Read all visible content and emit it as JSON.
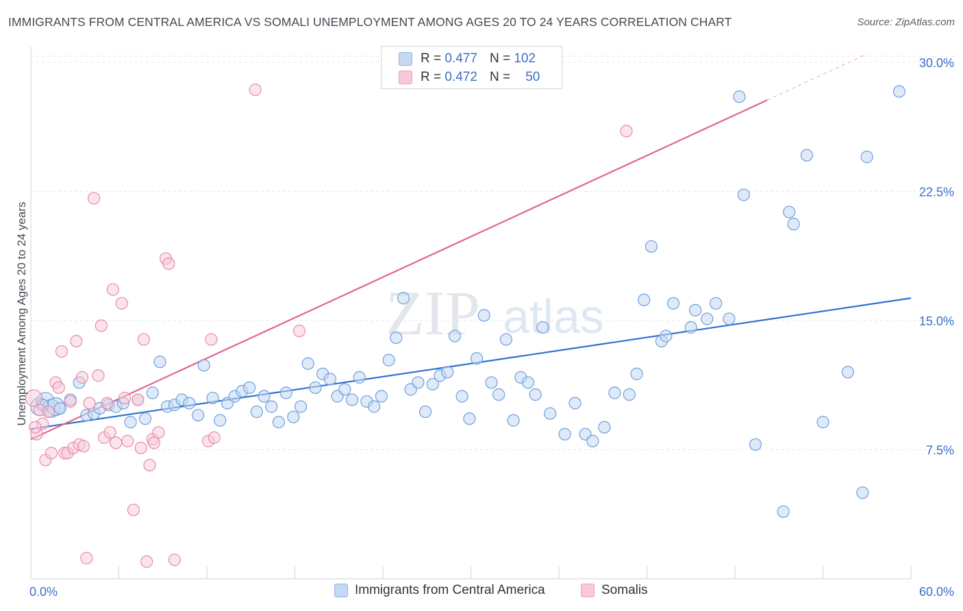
{
  "title": "IMMIGRANTS FROM CENTRAL AMERICA VS SOMALI UNEMPLOYMENT AMONG AGES 20 TO 24 YEARS CORRELATION CHART",
  "source": "Source: ZipAtlas.com",
  "watermark": {
    "zip": "ZIP",
    "atlas": "atlas"
  },
  "legend": {
    "r_label": "R =",
    "n_label": "N =",
    "series": [
      {
        "r": "0.477",
        "n": "102"
      },
      {
        "r": "0.472",
        "n": "50"
      }
    ]
  },
  "chart_data": {
    "type": "scatter",
    "title": "IMMIGRANTS FROM CENTRAL AMERICA VS SOMALI UNEMPLOYMENT AMONG AGES 20 TO 24 YEARS CORRELATION CHART",
    "xlabel": "",
    "ylabel": "Unemployment Among Ages 20 to 24 years",
    "xlim": [
      0,
      60
    ],
    "ylim": [
      0,
      30.75
    ],
    "x_tick_labels": [
      "0.0%",
      "60.0%"
    ],
    "y_ticks": [
      7.5,
      15.0,
      22.5,
      30.0
    ],
    "y_tick_labels": [
      "7.5%",
      "15.0%",
      "22.5%",
      "30.0%"
    ],
    "colors": {
      "blue": "#6d9fde",
      "pink": "#e98aa8",
      "blue_line": "#2f6fd0",
      "pink_line": "#e2648f",
      "tick_label": "#3b6fc4"
    },
    "series": [
      {
        "name": "Immigrants from Central America",
        "r": 0.477,
        "n": 102,
        "trend": {
          "x0": 0,
          "y0": 8.7,
          "x1": 60,
          "y1": 16.3
        },
        "points": [
          [
            0.6,
            10.0
          ],
          [
            1.0,
            10.3
          ],
          [
            1.4,
            9.9
          ],
          [
            1.7,
            10.0
          ],
          [
            2.7,
            10.4
          ],
          [
            3.3,
            11.4
          ],
          [
            3.8,
            9.5
          ],
          [
            4.3,
            9.6
          ],
          [
            4.7,
            9.9
          ],
          [
            5.3,
            10.1
          ],
          [
            5.8,
            10.0
          ],
          [
            6.3,
            10.2
          ],
          [
            6.8,
            9.1
          ],
          [
            7.3,
            10.4
          ],
          [
            7.8,
            9.3
          ],
          [
            8.3,
            10.8
          ],
          [
            8.8,
            12.6
          ],
          [
            9.3,
            10.0
          ],
          [
            9.8,
            10.1
          ],
          [
            10.3,
            10.4
          ],
          [
            10.8,
            10.2
          ],
          [
            11.4,
            9.5
          ],
          [
            11.8,
            12.4
          ],
          [
            12.4,
            10.5
          ],
          [
            12.9,
            9.2
          ],
          [
            13.4,
            10.2
          ],
          [
            13.9,
            10.6
          ],
          [
            14.4,
            10.9
          ],
          [
            14.9,
            11.1
          ],
          [
            15.4,
            9.7
          ],
          [
            15.9,
            10.6
          ],
          [
            16.4,
            10.0
          ],
          [
            16.9,
            9.1
          ],
          [
            17.4,
            10.8
          ],
          [
            17.9,
            9.4
          ],
          [
            18.4,
            10.0
          ],
          [
            18.9,
            12.5
          ],
          [
            19.4,
            11.1
          ],
          [
            19.9,
            11.9
          ],
          [
            20.4,
            11.6
          ],
          [
            20.9,
            10.6
          ],
          [
            21.4,
            11.0
          ],
          [
            21.9,
            10.4
          ],
          [
            22.4,
            11.7
          ],
          [
            22.9,
            10.3
          ],
          [
            23.4,
            10.0
          ],
          [
            23.9,
            10.6
          ],
          [
            24.4,
            12.7
          ],
          [
            24.9,
            14.0
          ],
          [
            25.4,
            16.3
          ],
          [
            25.9,
            11.0
          ],
          [
            26.4,
            11.4
          ],
          [
            26.9,
            9.7
          ],
          [
            27.4,
            11.3
          ],
          [
            27.9,
            11.8
          ],
          [
            28.4,
            12.0
          ],
          [
            28.9,
            14.1
          ],
          [
            29.4,
            10.6
          ],
          [
            29.9,
            9.3
          ],
          [
            30.4,
            12.8
          ],
          [
            30.9,
            15.3
          ],
          [
            31.4,
            11.4
          ],
          [
            31.9,
            10.7
          ],
          [
            32.4,
            13.9
          ],
          [
            32.9,
            9.2
          ],
          [
            33.4,
            11.7
          ],
          [
            33.9,
            11.4
          ],
          [
            34.4,
            10.7
          ],
          [
            34.9,
            14.6
          ],
          [
            35.4,
            9.6
          ],
          [
            36.4,
            8.4
          ],
          [
            37.1,
            10.2
          ],
          [
            37.8,
            8.4
          ],
          [
            38.3,
            8.0
          ],
          [
            39.1,
            8.8
          ],
          [
            39.8,
            10.8
          ],
          [
            40.8,
            10.7
          ],
          [
            41.3,
            11.9
          ],
          [
            41.8,
            16.2
          ],
          [
            42.3,
            19.3
          ],
          [
            43.0,
            13.8
          ],
          [
            43.3,
            14.1
          ],
          [
            43.8,
            16.0
          ],
          [
            45.0,
            14.6
          ],
          [
            45.3,
            15.6
          ],
          [
            46.1,
            15.1
          ],
          [
            46.7,
            16.0
          ],
          [
            47.6,
            15.1
          ],
          [
            48.3,
            28.0
          ],
          [
            48.6,
            22.3
          ],
          [
            49.4,
            7.8
          ],
          [
            51.3,
            3.9
          ],
          [
            51.7,
            21.3
          ],
          [
            52.0,
            20.6
          ],
          [
            52.9,
            24.6
          ],
          [
            54.0,
            9.1
          ],
          [
            55.7,
            12.0
          ],
          [
            56.7,
            5.0
          ],
          [
            57.0,
            24.5
          ],
          [
            59.2,
            28.3
          ],
          [
            0.8,
            10.1
          ],
          [
            2.0,
            9.9
          ]
        ]
      },
      {
        "name": "Somalis",
        "r": 0.472,
        "n": 50,
        "trend": {
          "x0": 0,
          "y0": 8.1,
          "x1": 50.2,
          "y1": 27.8,
          "dash_x1": 56.8,
          "dash_y1": 30.4
        },
        "points": [
          [
            0.2,
            10.5
          ],
          [
            0.4,
            8.4
          ],
          [
            0.6,
            9.8
          ],
          [
            0.8,
            9.0
          ],
          [
            1.0,
            6.9
          ],
          [
            1.2,
            9.7
          ],
          [
            1.4,
            7.3
          ],
          [
            1.7,
            11.4
          ],
          [
            1.9,
            11.1
          ],
          [
            2.1,
            13.2
          ],
          [
            2.3,
            7.3
          ],
          [
            2.5,
            7.3
          ],
          [
            2.7,
            10.3
          ],
          [
            2.9,
            7.6
          ],
          [
            3.1,
            13.8
          ],
          [
            3.3,
            7.8
          ],
          [
            3.5,
            11.7
          ],
          [
            3.8,
            1.2
          ],
          [
            4.0,
            10.2
          ],
          [
            4.3,
            22.1
          ],
          [
            4.6,
            11.8
          ],
          [
            4.8,
            14.7
          ],
          [
            5.0,
            8.2
          ],
          [
            5.2,
            10.2
          ],
          [
            5.4,
            8.5
          ],
          [
            5.6,
            16.8
          ],
          [
            5.8,
            7.9
          ],
          [
            6.2,
            16.0
          ],
          [
            6.6,
            8.0
          ],
          [
            7.0,
            4.0
          ],
          [
            7.3,
            10.4
          ],
          [
            7.5,
            7.6
          ],
          [
            7.7,
            13.9
          ],
          [
            7.9,
            1.0
          ],
          [
            8.1,
            6.6
          ],
          [
            8.3,
            8.1
          ],
          [
            8.4,
            7.9
          ],
          [
            8.7,
            8.5
          ],
          [
            9.2,
            18.6
          ],
          [
            9.4,
            18.3
          ],
          [
            9.8,
            1.1
          ],
          [
            12.1,
            8.0
          ],
          [
            12.3,
            13.9
          ],
          [
            12.5,
            8.2
          ],
          [
            15.3,
            28.4
          ],
          [
            18.3,
            14.4
          ],
          [
            40.6,
            26.0
          ],
          [
            0.3,
            8.8
          ],
          [
            3.6,
            7.7
          ],
          [
            6.4,
            10.5
          ]
        ]
      }
    ]
  },
  "bottom_legend": [
    "Immigrants from Central America",
    "Somalis"
  ]
}
